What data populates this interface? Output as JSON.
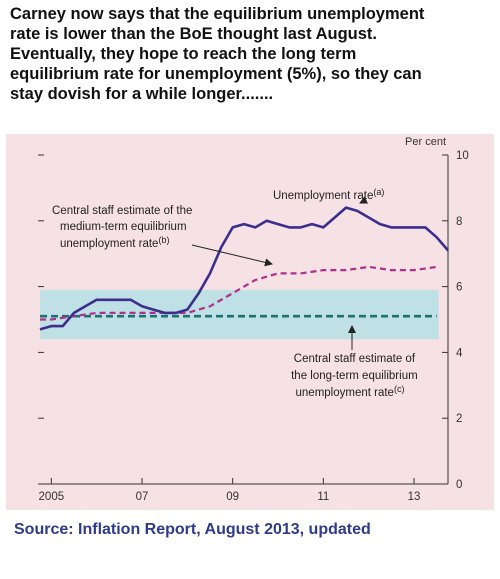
{
  "headline": {
    "lines": [
      "Carney now says that the equilibrium unemployment",
      "rate is lower than the BoE thought last August.",
      "Eventually, they hope to reach the long term",
      "equilibrium rate for unemployment (5%), so they can",
      "stay dovish for a while longer......."
    ]
  },
  "source": "Source: Inflation Report, August 2013, updated",
  "colors": {
    "panel_bg": "#f6e1e5",
    "unemployment": "#3b2e8f",
    "medium_term": "#b0308a",
    "long_term": "#1f6f73",
    "band": "#bfe0e4"
  },
  "chart_data": {
    "type": "line",
    "unit_label": "Per cent",
    "ylim": [
      0,
      10
    ],
    "yticks": [
      0,
      2,
      4,
      6,
      8,
      10
    ],
    "xlim": [
      2004.75,
      2013.75
    ],
    "xticks": [
      {
        "value": 2005,
        "label": "2005"
      },
      {
        "value": 2007,
        "label": "07"
      },
      {
        "value": 2009,
        "label": "09"
      },
      {
        "value": 2011,
        "label": "11"
      },
      {
        "value": 2013,
        "label": "13"
      }
    ],
    "grid": false,
    "band": {
      "low": 4.4,
      "high": 5.9
    },
    "series": [
      {
        "key": "unemployment",
        "x": [
          2004.75,
          2005.0,
          2005.25,
          2005.5,
          2005.75,
          2006.0,
          2006.25,
          2006.5,
          2006.75,
          2007.0,
          2007.25,
          2007.5,
          2007.75,
          2008.0,
          2008.25,
          2008.5,
          2008.75,
          2009.0,
          2009.25,
          2009.5,
          2009.75,
          2010.0,
          2010.25,
          2010.5,
          2010.75,
          2011.0,
          2011.25,
          2011.5,
          2011.75,
          2012.0,
          2012.25,
          2012.5,
          2012.75,
          2013.0,
          2013.25,
          2013.5,
          2013.75
        ],
        "y": [
          4.7,
          4.8,
          4.8,
          5.2,
          5.4,
          5.6,
          5.6,
          5.6,
          5.6,
          5.4,
          5.3,
          5.2,
          5.2,
          5.3,
          5.8,
          6.4,
          7.2,
          7.8,
          7.9,
          7.8,
          8.0,
          7.9,
          7.8,
          7.8,
          7.9,
          7.8,
          8.1,
          8.4,
          8.3,
          8.1,
          7.9,
          7.8,
          7.8,
          7.8,
          7.8,
          7.5,
          7.1
        ],
        "style": "solid"
      },
      {
        "key": "medium_term",
        "x": [
          2004.75,
          2005.0,
          2005.5,
          2006.0,
          2006.5,
          2007.0,
          2007.5,
          2008.0,
          2008.5,
          2009.0,
          2009.5,
          2010.0,
          2010.5,
          2011.0,
          2011.5,
          2012.0,
          2012.5,
          2013.0,
          2013.5
        ],
        "y": [
          5.0,
          5.0,
          5.1,
          5.2,
          5.2,
          5.2,
          5.2,
          5.2,
          5.4,
          5.8,
          6.2,
          6.4,
          6.4,
          6.5,
          6.5,
          6.6,
          6.5,
          6.5,
          6.6
        ],
        "style": "dashed"
      },
      {
        "key": "long_term",
        "x": [
          2004.75,
          2013.5
        ],
        "y": [
          5.1,
          5.1
        ],
        "style": "dashed"
      }
    ],
    "annotations": {
      "unemployment": {
        "text": "Unemployment rate",
        "sup": "(a)"
      },
      "medium_term": {
        "lines": [
          "Central staff estimate of the",
          "medium-term equilibrium",
          "unemployment rate"
        ],
        "sup": "(b)"
      },
      "long_term": {
        "lines": [
          "Central staff estimate of",
          "the long-term equilibrium",
          "unemployment rate"
        ],
        "sup": "(c)"
      }
    }
  }
}
